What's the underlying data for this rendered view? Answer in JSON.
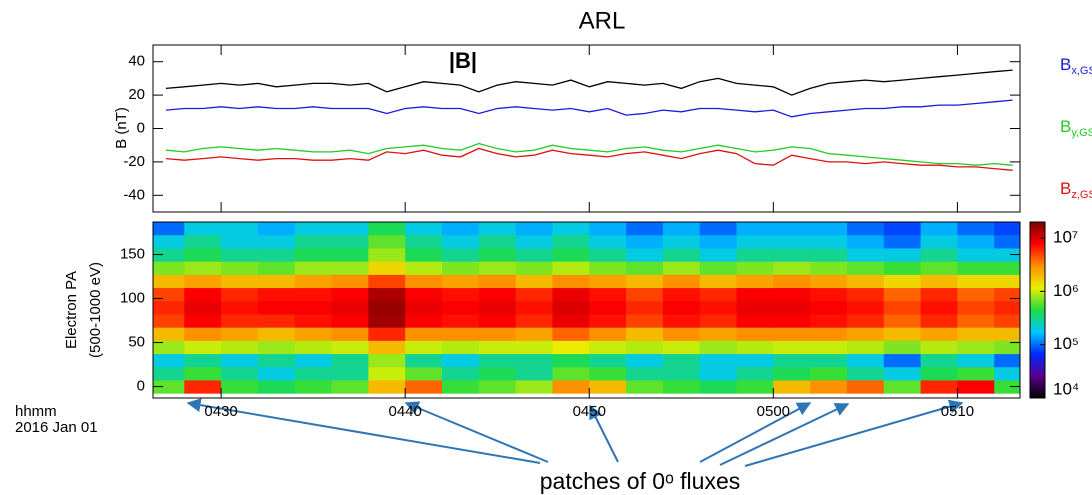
{
  "chart_data": [
    {
      "type": "line",
      "title": "ARL",
      "ylabel": "B (nT)",
      "x": [
        27,
        28,
        29,
        30,
        31,
        32,
        33,
        34,
        35,
        36,
        37,
        38,
        39,
        40,
        41,
        42,
        43,
        44,
        45,
        46,
        47,
        48,
        49,
        50,
        51,
        52,
        53,
        54,
        55,
        56,
        57,
        58,
        59,
        60,
        61,
        62,
        63,
        64,
        65,
        66,
        67,
        68,
        69,
        70,
        71,
        72,
        73
      ],
      "xlim": [
        26.3,
        73.4
      ],
      "xticks": [
        30,
        40,
        50,
        60,
        70
      ],
      "ylim": [
        -50,
        50
      ],
      "yticks": [
        -40,
        -20,
        0,
        20,
        40
      ],
      "series": [
        {
          "name": "|B|",
          "color": "#000000",
          "values": [
            24,
            25,
            26,
            27,
            26,
            27,
            25,
            26,
            27,
            27,
            26,
            27,
            22,
            25,
            28,
            27,
            26,
            22,
            26,
            28,
            27,
            26,
            29,
            25,
            28,
            27,
            26,
            27,
            24,
            28,
            30,
            27,
            26,
            25,
            20,
            24,
            27,
            28,
            29,
            28,
            29,
            30,
            31,
            32,
            33,
            34,
            35
          ]
        },
        {
          "name": "B",
          "name_sub": "x,GSM",
          "color": "#1a1ad8",
          "values": [
            11,
            12,
            12,
            13,
            12,
            13,
            12,
            12,
            13,
            12,
            12,
            12,
            9,
            12,
            13,
            12,
            12,
            9,
            12,
            13,
            12,
            11,
            12,
            10,
            12,
            8,
            9,
            11,
            10,
            12,
            12,
            11,
            10,
            11,
            7,
            9,
            10,
            11,
            12,
            12,
            13,
            13,
            14,
            14,
            15,
            16,
            17
          ]
        },
        {
          "name": "B",
          "name_sub": "y,GSM",
          "color": "#22cc22",
          "values": [
            -13,
            -14,
            -12,
            -11,
            -12,
            -13,
            -12,
            -13,
            -14,
            -14,
            -13,
            -15,
            -12,
            -11,
            -10,
            -12,
            -13,
            -9,
            -12,
            -14,
            -13,
            -10,
            -12,
            -13,
            -14,
            -12,
            -11,
            -13,
            -14,
            -12,
            -10,
            -12,
            -14,
            -13,
            -11,
            -12,
            -15,
            -16,
            -17,
            -18,
            -19,
            -20,
            -21,
            -21,
            -22,
            -21,
            -22
          ]
        },
        {
          "name": "B",
          "name_sub": "z,GSM",
          "color": "#dd1111",
          "values": [
            -18,
            -19,
            -18,
            -17,
            -18,
            -19,
            -18,
            -18,
            -19,
            -19,
            -18,
            -19,
            -14,
            -15,
            -13,
            -16,
            -17,
            -12,
            -15,
            -17,
            -16,
            -13,
            -15,
            -16,
            -17,
            -15,
            -14,
            -16,
            -18,
            -15,
            -13,
            -15,
            -21,
            -22,
            -16,
            -18,
            -20,
            -20,
            -21,
            -20,
            -21,
            -22,
            -22,
            -23,
            -23,
            -24,
            -25
          ]
        }
      ]
    },
    {
      "type": "heatmap",
      "ylabel": [
        "Electron PA",
        "(500-1000 eV)"
      ],
      "xlabel": "hhmm",
      "date": "2016 Jan 01",
      "annotation": "patches of 0ᵒ fluxes",
      "x": [
        27,
        29,
        31,
        33,
        35,
        37,
        39,
        41,
        43,
        45,
        47,
        49,
        51,
        53,
        55,
        57,
        59,
        61,
        63,
        65,
        67,
        69,
        71,
        73
      ],
      "xlim": [
        26.3,
        73.4
      ],
      "xticks": [
        {
          "value": 30,
          "label": "0430"
        },
        {
          "value": 40,
          "label": "0440"
        },
        {
          "value": 50,
          "label": "0450"
        },
        {
          "value": 60,
          "label": "0500"
        },
        {
          "value": 70,
          "label": "0510"
        }
      ],
      "y": [
        0,
        15,
        30,
        45,
        60,
        75,
        90,
        105,
        120,
        135,
        150,
        165,
        180
      ],
      "ylim": [
        -13,
        187
      ],
      "yticks": [
        0,
        50,
        100,
        150
      ],
      "z": [
        [
          600000.0,
          6000000.0,
          500000.0,
          400000.0,
          500000.0,
          600000.0,
          2000000.0,
          4000000.0,
          500000.0,
          600000.0,
          800000.0,
          3000000.0,
          2000000.0,
          600000.0,
          500000.0,
          400000.0,
          500000.0,
          2000000.0,
          3000000.0,
          4000000.0,
          600000.0,
          6000000.0,
          8000000.0,
          500000.0
        ],
        [
          300000.0,
          500000.0,
          300000.0,
          200000.0,
          300000.0,
          300000.0,
          1000000.0,
          600000.0,
          300000.0,
          400000.0,
          300000.0,
          600000.0,
          500000.0,
          300000.0,
          300000.0,
          200000.0,
          300000.0,
          400000.0,
          500000.0,
          300000.0,
          200000.0,
          400000.0,
          500000.0,
          200000.0
        ],
        [
          200000.0,
          300000.0,
          200000.0,
          300000.0,
          200000.0,
          300000.0,
          800000.0,
          300000.0,
          200000.0,
          300000.0,
          300000.0,
          400000.0,
          300000.0,
          200000.0,
          300000.0,
          200000.0,
          200000.0,
          300000.0,
          300000.0,
          200000.0,
          100000.0,
          300000.0,
          200000.0,
          100000.0
        ],
        [
          800000.0,
          1000000.0,
          900000.0,
          800000.0,
          900000.0,
          1000000.0,
          2000000.0,
          1000000.0,
          900000.0,
          1000000.0,
          1000000.0,
          1200000.0,
          1000000.0,
          900000.0,
          1000000.0,
          800000.0,
          900000.0,
          1000000.0,
          1000000.0,
          900000.0,
          700000.0,
          900000.0,
          800000.0,
          700000.0
        ],
        [
          2000000.0,
          3000000.0,
          2500000.0,
          2000000.0,
          2500000.0,
          3000000.0,
          6000000.0,
          3000000.0,
          3000000.0,
          3000000.0,
          2500000.0,
          4000000.0,
          3000000.0,
          2000000.0,
          3000000.0,
          2500000.0,
          3000000.0,
          3000000.0,
          3000000.0,
          2500000.0,
          2000000.0,
          2500000.0,
          2000000.0,
          2000000.0
        ],
        [
          5000000.0,
          8000000.0,
          6000000.0,
          6000000.0,
          7000000.0,
          8000000.0,
          15000000.0,
          8000000.0,
          7000000.0,
          8000000.0,
          6000000.0,
          9000000.0,
          7000000.0,
          5000000.0,
          7000000.0,
          6000000.0,
          8000000.0,
          8000000.0,
          7000000.0,
          6000000.0,
          4000000.0,
          6000000.0,
          4000000.0,
          5000000.0
        ],
        [
          6000000.0,
          9000000.0,
          7000000.0,
          8000000.0,
          8000000.0,
          9000000.0,
          16000000.0,
          9000000.0,
          8000000.0,
          9000000.0,
          7000000.0,
          10000000.0,
          8000000.0,
          6000000.0,
          8000000.0,
          7000000.0,
          9000000.0,
          9000000.0,
          8000000.0,
          7000000.0,
          5000000.0,
          7000000.0,
          5000000.0,
          6000000.0
        ],
        [
          5000000.0,
          8000000.0,
          6000000.0,
          7000000.0,
          7000000.0,
          8000000.0,
          14000000.0,
          8000000.0,
          7000000.0,
          8000000.0,
          6000000.0,
          9000000.0,
          7000000.0,
          5000000.0,
          7000000.0,
          6000000.0,
          8000000.0,
          8000000.0,
          7000000.0,
          6000000.0,
          4000000.0,
          6000000.0,
          4000000.0,
          5000000.0
        ],
        [
          2000000.0,
          2500000.0,
          2000000.0,
          2000000.0,
          2500000.0,
          3000000.0,
          5000000.0,
          3000000.0,
          2500000.0,
          3000000.0,
          2000000.0,
          3000000.0,
          2500000.0,
          2000000.0,
          3000000.0,
          2000000.0,
          2500000.0,
          3000000.0,
          2500000.0,
          2000000.0,
          1500000.0,
          2000000.0,
          1500000.0,
          1500000.0
        ],
        [
          700000.0,
          800000.0,
          700000.0,
          600000.0,
          800000.0,
          800000.0,
          1500000.0,
          900000.0,
          700000.0,
          800000.0,
          700000.0,
          900000.0,
          700000.0,
          600000.0,
          800000.0,
          600000.0,
          700000.0,
          800000.0,
          700000.0,
          600000.0,
          500000.0,
          600000.0,
          500000.0,
          500000.0
        ],
        [
          300000.0,
          400000.0,
          300000.0,
          300000.0,
          400000.0,
          400000.0,
          800000.0,
          400000.0,
          300000.0,
          400000.0,
          300000.0,
          400000.0,
          300000.0,
          200000.0,
          300000.0,
          200000.0,
          300000.0,
          300000.0,
          300000.0,
          200000.0,
          200000.0,
          300000.0,
          200000.0,
          200000.0
        ],
        [
          200000.0,
          300000.0,
          200000.0,
          200000.0,
          300000.0,
          300000.0,
          600000.0,
          300000.0,
          200000.0,
          300000.0,
          200000.0,
          300000.0,
          200000.0,
          150000.0,
          200000.0,
          150000.0,
          200000.0,
          200000.0,
          200000.0,
          150000.0,
          100000.0,
          200000.0,
          150000.0,
          100000.0
        ],
        [
          100000.0,
          200000.0,
          200000.0,
          150000.0,
          200000.0,
          200000.0,
          400000.0,
          200000.0,
          150000.0,
          200000.0,
          150000.0,
          200000.0,
          150000.0,
          100000.0,
          150000.0,
          100000.0,
          150000.0,
          150000.0,
          150000.0,
          100000.0,
          80000.0,
          150000.0,
          100000.0,
          80000.0
        ]
      ],
      "zscale": "log",
      "zlim": [
        10000,
        20000000
      ],
      "zticks": [
        {
          "value": 10000,
          "label": "10⁴"
        },
        {
          "value": 100000,
          "label": "10⁵"
        },
        {
          "value": 1000000,
          "label": "10⁶"
        },
        {
          "value": 10000000,
          "label": "10⁷"
        }
      ],
      "colormap": [
        "#000000",
        "#5a0090",
        "#0028ff",
        "#00c8ff",
        "#20dc40",
        "#e8f000",
        "#ff9000",
        "#ff0000",
        "#7a0000"
      ]
    }
  ]
}
